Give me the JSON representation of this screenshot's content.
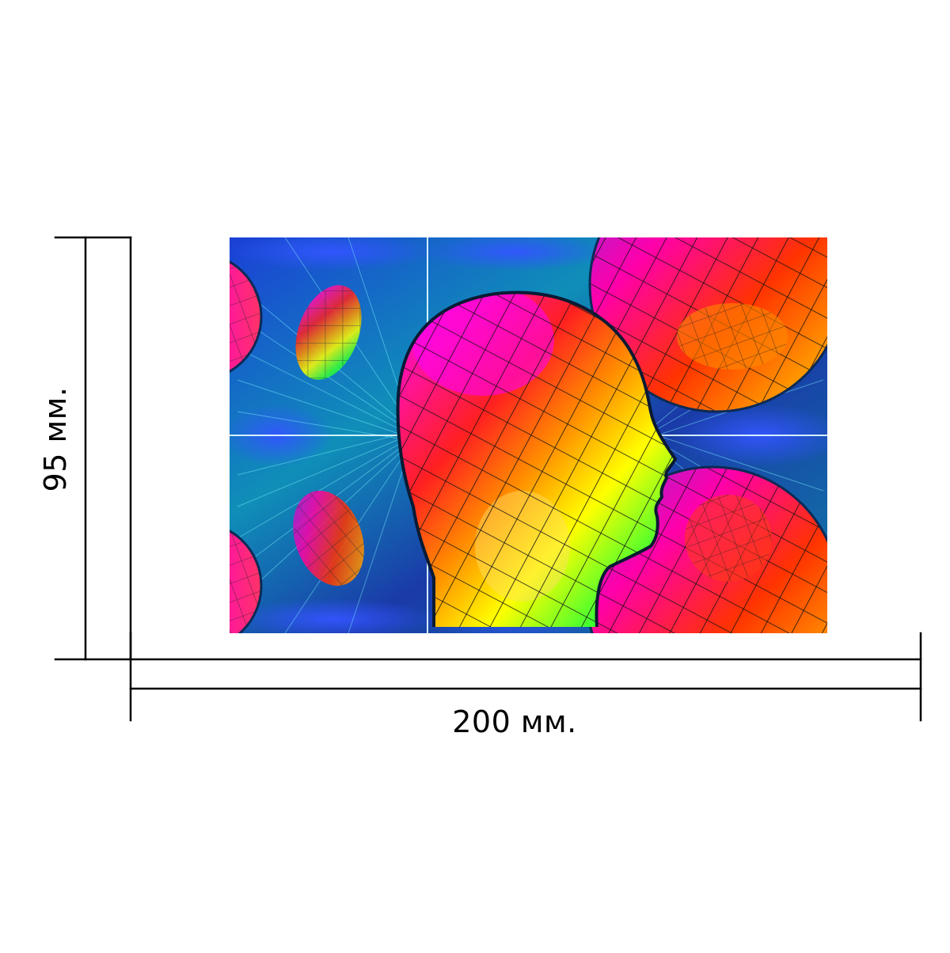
{
  "dimensions": {
    "width_label": "200 мм.",
    "height_label": "95 мм."
  },
  "artwork": {
    "subject": "head-profile-silhouette",
    "palette": [
      "#ff00ff",
      "#8a2be2",
      "#1e90ff",
      "#00ced1",
      "#00ff66",
      "#ffff00",
      "#ff8c00",
      "#ff0033"
    ]
  },
  "colors": {
    "line": "#000000",
    "background": "#ffffff"
  }
}
